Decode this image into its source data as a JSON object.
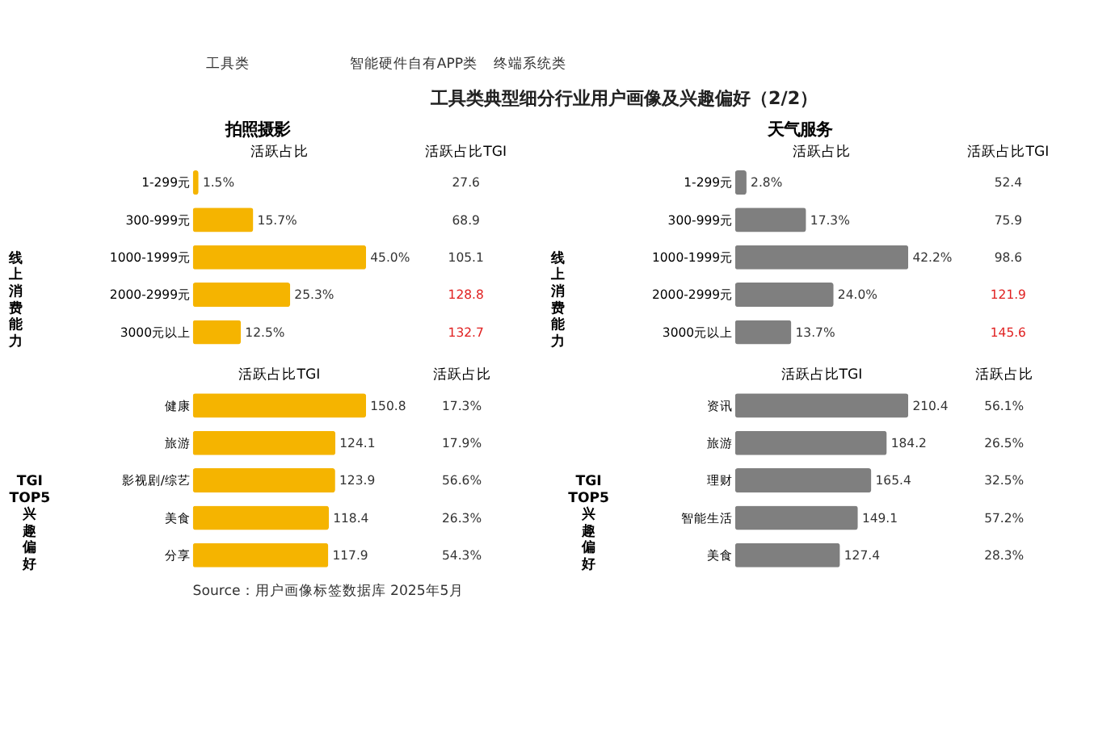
{
  "chart_data": [
    {
      "type": "other",
      "title": "工具类典型细分行业用户画像及兴趣偏好（2/2）",
      "annotations": [
        "工具类",
        "智能硬件自有APP类",
        "终端系统类",
        "Source：用户画像标签数据库 2025年5月"
      ]
    },
    {
      "type": "bar",
      "orientation": "horizontal",
      "title": "拍照摄影",
      "ylabel": "线上消费能力",
      "tick_labels": "y",
      "categories": [
        "1-299元",
        "300-999元",
        "1000-1999元",
        "2000-2999元",
        "3000元以上"
      ],
      "series": [
        {
          "name": "活跃占比",
          "color": "#f5b400",
          "values": [
            1.5,
            15.7,
            45.0,
            25.3,
            12.5
          ],
          "value_labels": [
            "1.5%",
            "15.7%",
            "45.0%",
            "25.3%",
            "12.5%"
          ]
        }
      ]
    },
    {
      "type": "other",
      "title": "活跃占比TGI",
      "categories": [
        null,
        null,
        null,
        null,
        null
      ],
      "values": [
        27.6,
        68.9,
        105.1,
        128.8,
        132.7
      ],
      "colors": [
        "#333333",
        "#333333",
        "#333333",
        "#e02020",
        "#e02020"
      ],
      "data_labels": true
    },
    {
      "type": "bar",
      "orientation": "horizontal",
      "title": "天气服务",
      "ylabel": "线上消费能力",
      "tick_labels": "y",
      "categories": [
        "1-299元",
        "300-999元",
        "1000-1999元",
        "2000-2999元",
        "3000元以上"
      ],
      "series": [
        {
          "name": "活跃占比",
          "color": "#7f7f7f",
          "values": [
            2.8,
            17.3,
            42.2,
            24.0,
            13.7
          ],
          "value_labels": [
            "2.8%",
            "17.3%",
            "42.2%",
            "24.0%",
            "13.7%"
          ]
        }
      ]
    },
    {
      "type": "other",
      "title": "活跃占比TGI",
      "categories": [
        null,
        null,
        null,
        null,
        null
      ],
      "values": [
        52.4,
        75.9,
        98.6,
        121.9,
        145.6
      ],
      "colors": [
        "#333333",
        "#333333",
        "#333333",
        "#e02020",
        "#e02020"
      ],
      "data_labels": true
    },
    {
      "type": "bar",
      "orientation": "horizontal",
      "ylabel": "TGI TOP5兴趣偏好",
      "tick_labels": "y",
      "categories": [
        "健康",
        "旅游",
        "影视剧/综艺",
        "美食",
        "分享"
      ],
      "series": [
        {
          "name": "活跃占比TGI",
          "color": "#f5b400",
          "values": [
            150.8,
            124.1,
            123.9,
            118.4,
            117.9
          ],
          "value_labels": [
            "150.8",
            "124.1",
            "123.9",
            "118.4",
            "117.9"
          ]
        }
      ]
    },
    {
      "type": "other",
      "title": "活跃占比",
      "categories": [
        null,
        null,
        null,
        null,
        null
      ],
      "values": [
        17.3,
        17.9,
        56.6,
        26.3,
        54.3
      ],
      "value_labels": [
        "17.3%",
        "17.9%",
        "56.6%",
        "26.3%",
        "54.3%"
      ],
      "colors": [
        "#333333",
        "#333333",
        "#333333",
        "#333333",
        "#333333"
      ]
    },
    {
      "type": "bar",
      "orientation": "horizontal",
      "ylabel": "TGI TOP5兴趣偏好",
      "tick_labels": "y",
      "categories": [
        "资讯",
        "旅游",
        "理财",
        "智能生活",
        "美食"
      ],
      "series": [
        {
          "name": "活跃占比TGI",
          "color": "#7f7f7f",
          "values": [
            210.4,
            184.2,
            165.4,
            149.1,
            127.4
          ],
          "value_labels": [
            "210.4",
            "184.2",
            "165.4",
            "149.1",
            "127.4"
          ]
        }
      ]
    },
    {
      "type": "other",
      "title": "活跃占比",
      "categories": [
        null,
        null,
        null,
        null,
        null
      ],
      "values": [
        56.1,
        26.5,
        32.5,
        57.2,
        28.3
      ],
      "value_labels": [
        "56.1%",
        "26.5%",
        "32.5%",
        "57.2%",
        "28.3%"
      ],
      "colors": [
        "#333333",
        "#333333",
        "#333333",
        "#333333",
        "#333333"
      ]
    }
  ]
}
